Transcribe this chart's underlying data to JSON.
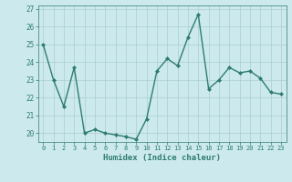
{
  "x": [
    0,
    1,
    2,
    3,
    4,
    5,
    6,
    7,
    8,
    9,
    10,
    11,
    12,
    13,
    14,
    15,
    16,
    17,
    18,
    19,
    20,
    21,
    22,
    23
  ],
  "y": [
    25.0,
    23.0,
    21.5,
    23.7,
    20.0,
    20.2,
    20.0,
    19.9,
    19.8,
    19.65,
    20.8,
    23.5,
    24.2,
    23.8,
    25.4,
    26.7,
    22.5,
    23.0,
    23.7,
    23.4,
    23.5,
    23.1,
    22.3,
    22.2
  ],
  "xlabel": "Humidex (Indice chaleur)",
  "ylabel": "",
  "title": "",
  "xlim": [
    -0.5,
    23.5
  ],
  "ylim": [
    19.5,
    27.2
  ],
  "yticks": [
    20,
    21,
    22,
    23,
    24,
    25,
    26,
    27
  ],
  "xticks": [
    0,
    1,
    2,
    3,
    4,
    5,
    6,
    7,
    8,
    9,
    10,
    11,
    12,
    13,
    14,
    15,
    16,
    17,
    18,
    19,
    20,
    21,
    22,
    23
  ],
  "line_color": "#2e7d6e",
  "bg_color": "#cce9ed",
  "grid_color": "#aacdd2",
  "tick_color": "#2e7d6e",
  "label_color": "#2e7d6e",
  "marker": "D",
  "markersize": 2.0,
  "linewidth": 1.0
}
